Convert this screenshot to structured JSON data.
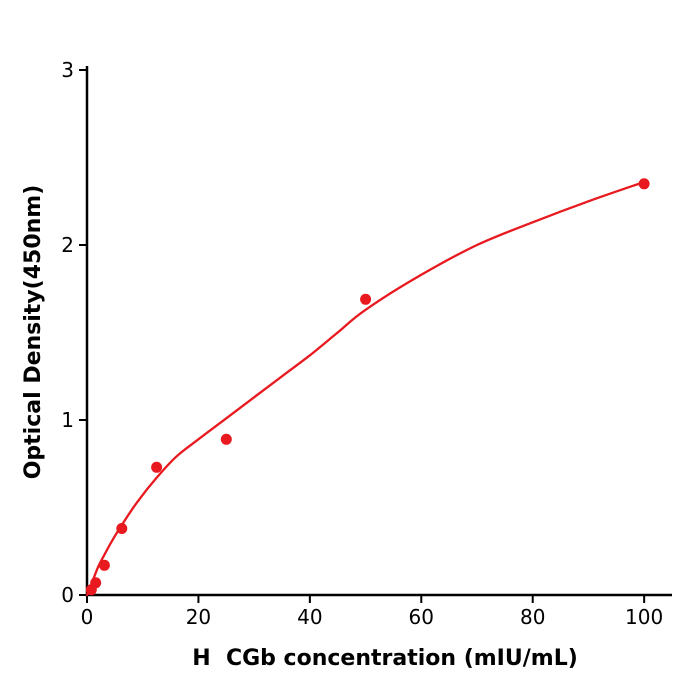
{
  "figure": {
    "background": "#ffffff",
    "accent_color": "#e8191f",
    "axis_color": "#000000"
  },
  "chart_data": {
    "type": "scatter",
    "title": "",
    "xlabel": "H  CGb concentration (mIU/mL)",
    "ylabel": "Optical Density(450nm)",
    "xlim": [
      0,
      105
    ],
    "ylim": [
      0,
      3
    ],
    "x_ticks": [
      0,
      20,
      40,
      60,
      80,
      100
    ],
    "y_ticks": [
      0,
      1,
      2,
      3
    ],
    "grid": false,
    "legend": "none",
    "point_color": "#e8191f",
    "line_color": "#e8191f",
    "points": [
      {
        "x": 0.78,
        "y": 0.03
      },
      {
        "x": 1.56,
        "y": 0.07
      },
      {
        "x": 3.125,
        "y": 0.17
      },
      {
        "x": 6.25,
        "y": 0.38
      },
      {
        "x": 12.5,
        "y": 0.73
      },
      {
        "x": 25,
        "y": 0.89
      },
      {
        "x": 50,
        "y": 1.69
      },
      {
        "x": 100,
        "y": 2.35
      }
    ],
    "fit_curve": [
      [
        0,
        0.0
      ],
      [
        1,
        0.08
      ],
      [
        2,
        0.16
      ],
      [
        3.125,
        0.23
      ],
      [
        4.5,
        0.31
      ],
      [
        6.25,
        0.4
      ],
      [
        9,
        0.53
      ],
      [
        12.5,
        0.67
      ],
      [
        16,
        0.79
      ],
      [
        20,
        0.89
      ],
      [
        25,
        1.01
      ],
      [
        30,
        1.13
      ],
      [
        35,
        1.25
      ],
      [
        40,
        1.37
      ],
      [
        45,
        1.5
      ],
      [
        50,
        1.63
      ],
      [
        60,
        1.83
      ],
      [
        70,
        2.0
      ],
      [
        80,
        2.13
      ],
      [
        90,
        2.25
      ],
      [
        100,
        2.36
      ]
    ]
  }
}
